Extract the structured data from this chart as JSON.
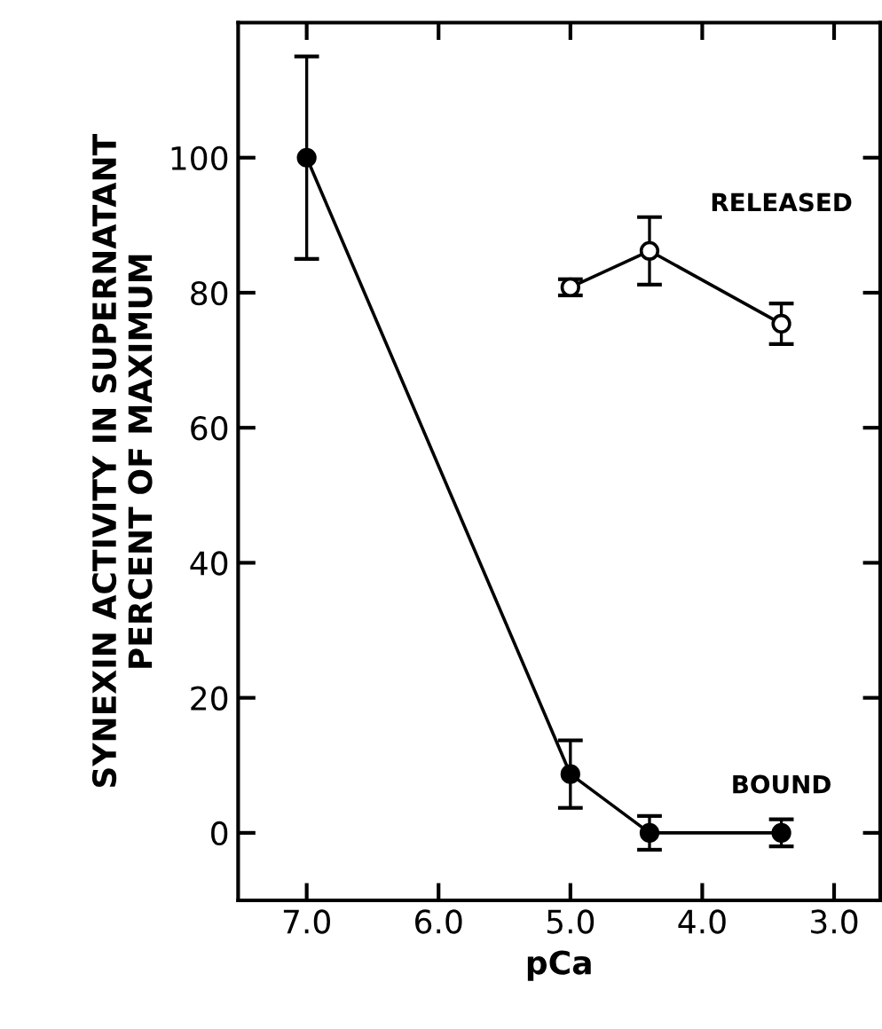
{
  "chart_data": {
    "type": "line",
    "xlabel": "pCa",
    "ylabel": "SYNEXIN ACTIVITY IN SUPERNATANT\nPERCENT OF MAXIMUM",
    "xlim": [
      7.52,
      2.65
    ],
    "xticks": [
      {
        "value": 7,
        "label": "7.0"
      },
      {
        "value": 6,
        "label": "6.0"
      },
      {
        "value": 5,
        "label": "5.0"
      },
      {
        "value": 4,
        "label": "4.0"
      },
      {
        "value": 3,
        "label": "3.0"
      }
    ],
    "ylim": [
      -10,
      120
    ],
    "yticks": [
      0,
      20,
      40,
      60,
      80,
      100
    ],
    "marker": "circle",
    "line_style": "solid",
    "grid": false,
    "series": [
      {
        "name": "BOUND",
        "color": "#000000",
        "x": [
          7.0,
          5.0,
          4.4,
          3.4
        ],
        "values": [
          100,
          8.7,
          0,
          0
        ],
        "errors": [
          15,
          5,
          2.5,
          2
        ],
        "colors": [
          "#000000",
          "#000000",
          "#000000",
          "#000000"
        ]
      },
      {
        "name": "RELEASED",
        "color": "#000000",
        "x": [
          5.0,
          4.4,
          3.4
        ],
        "values": [
          80.8,
          86.2,
          75.4
        ],
        "errors": [
          1.2,
          5,
          3
        ],
        "colors": [
          "#ffffff",
          "#ffffff",
          "#ffffff"
        ]
      }
    ]
  }
}
